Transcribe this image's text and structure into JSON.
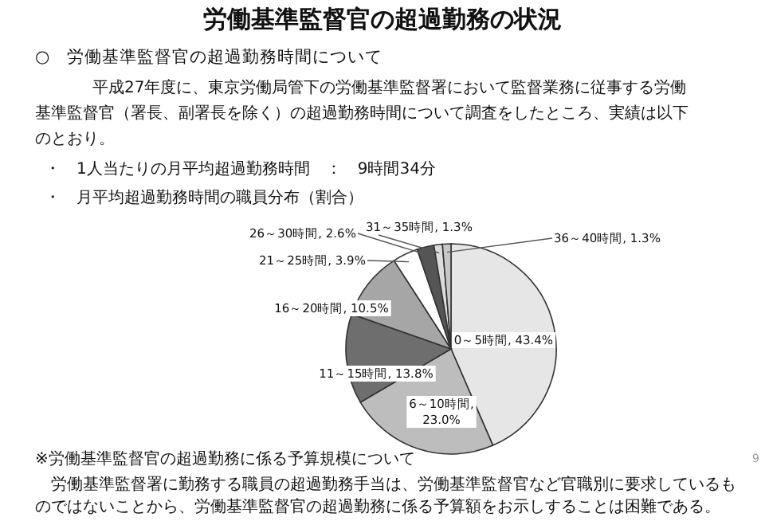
{
  "chart_data": {
    "type": "pie",
    "title": "労働基準監督官の超過勤務の状況",
    "subtitle": "○　労働基準監督官の超過勤務時間について",
    "annotations": [
      "平成27年度に、東京労働局管下の労働基準監督署において監督業務に従事する労働",
      "基準監督官（署長、副署長を除く）の超過勤務時間について調査をしたところ、実績は以下",
      "のとおり。",
      "・　1人当たりの月平均超過勤務時間　：　9時間34分",
      "・　月平均超過勤務時間の職員分布（割合）",
      "※労働基準監督官の超過勤務に係る予算規模について",
      "労働基準監督署に勤務する職員の超過勤務手当は、労働基準監督官など官職別に要求しているも",
      "のではないことから、労働基準監督官の超過勤務に係る予算額をお示しすることは困難である。",
      "9"
    ],
    "categories": [
      "0～5時間",
      "6～10時間",
      "11～15時間",
      "16～20時間",
      "21～25時間",
      "26～30時間",
      "31～35時間",
      "36～40時間"
    ],
    "values": [
      43.4,
      23.0,
      13.8,
      10.5,
      3.9,
      2.6,
      1.3,
      1.3
    ],
    "value_labels": [
      ", 43.4%",
      ", 23.0%",
      ", 13.8%",
      ", 10.5%",
      ", 3.9%",
      ", 2.6%",
      ", 1.3%",
      ", 1.3%"
    ],
    "colors": [
      "#e6e6e6",
      "#bdbdbd",
      "#6e6e6e",
      "#a6a6a6",
      "#ffffff",
      "#555555",
      "#dcdcdc",
      "#c8c8c8"
    ]
  }
}
